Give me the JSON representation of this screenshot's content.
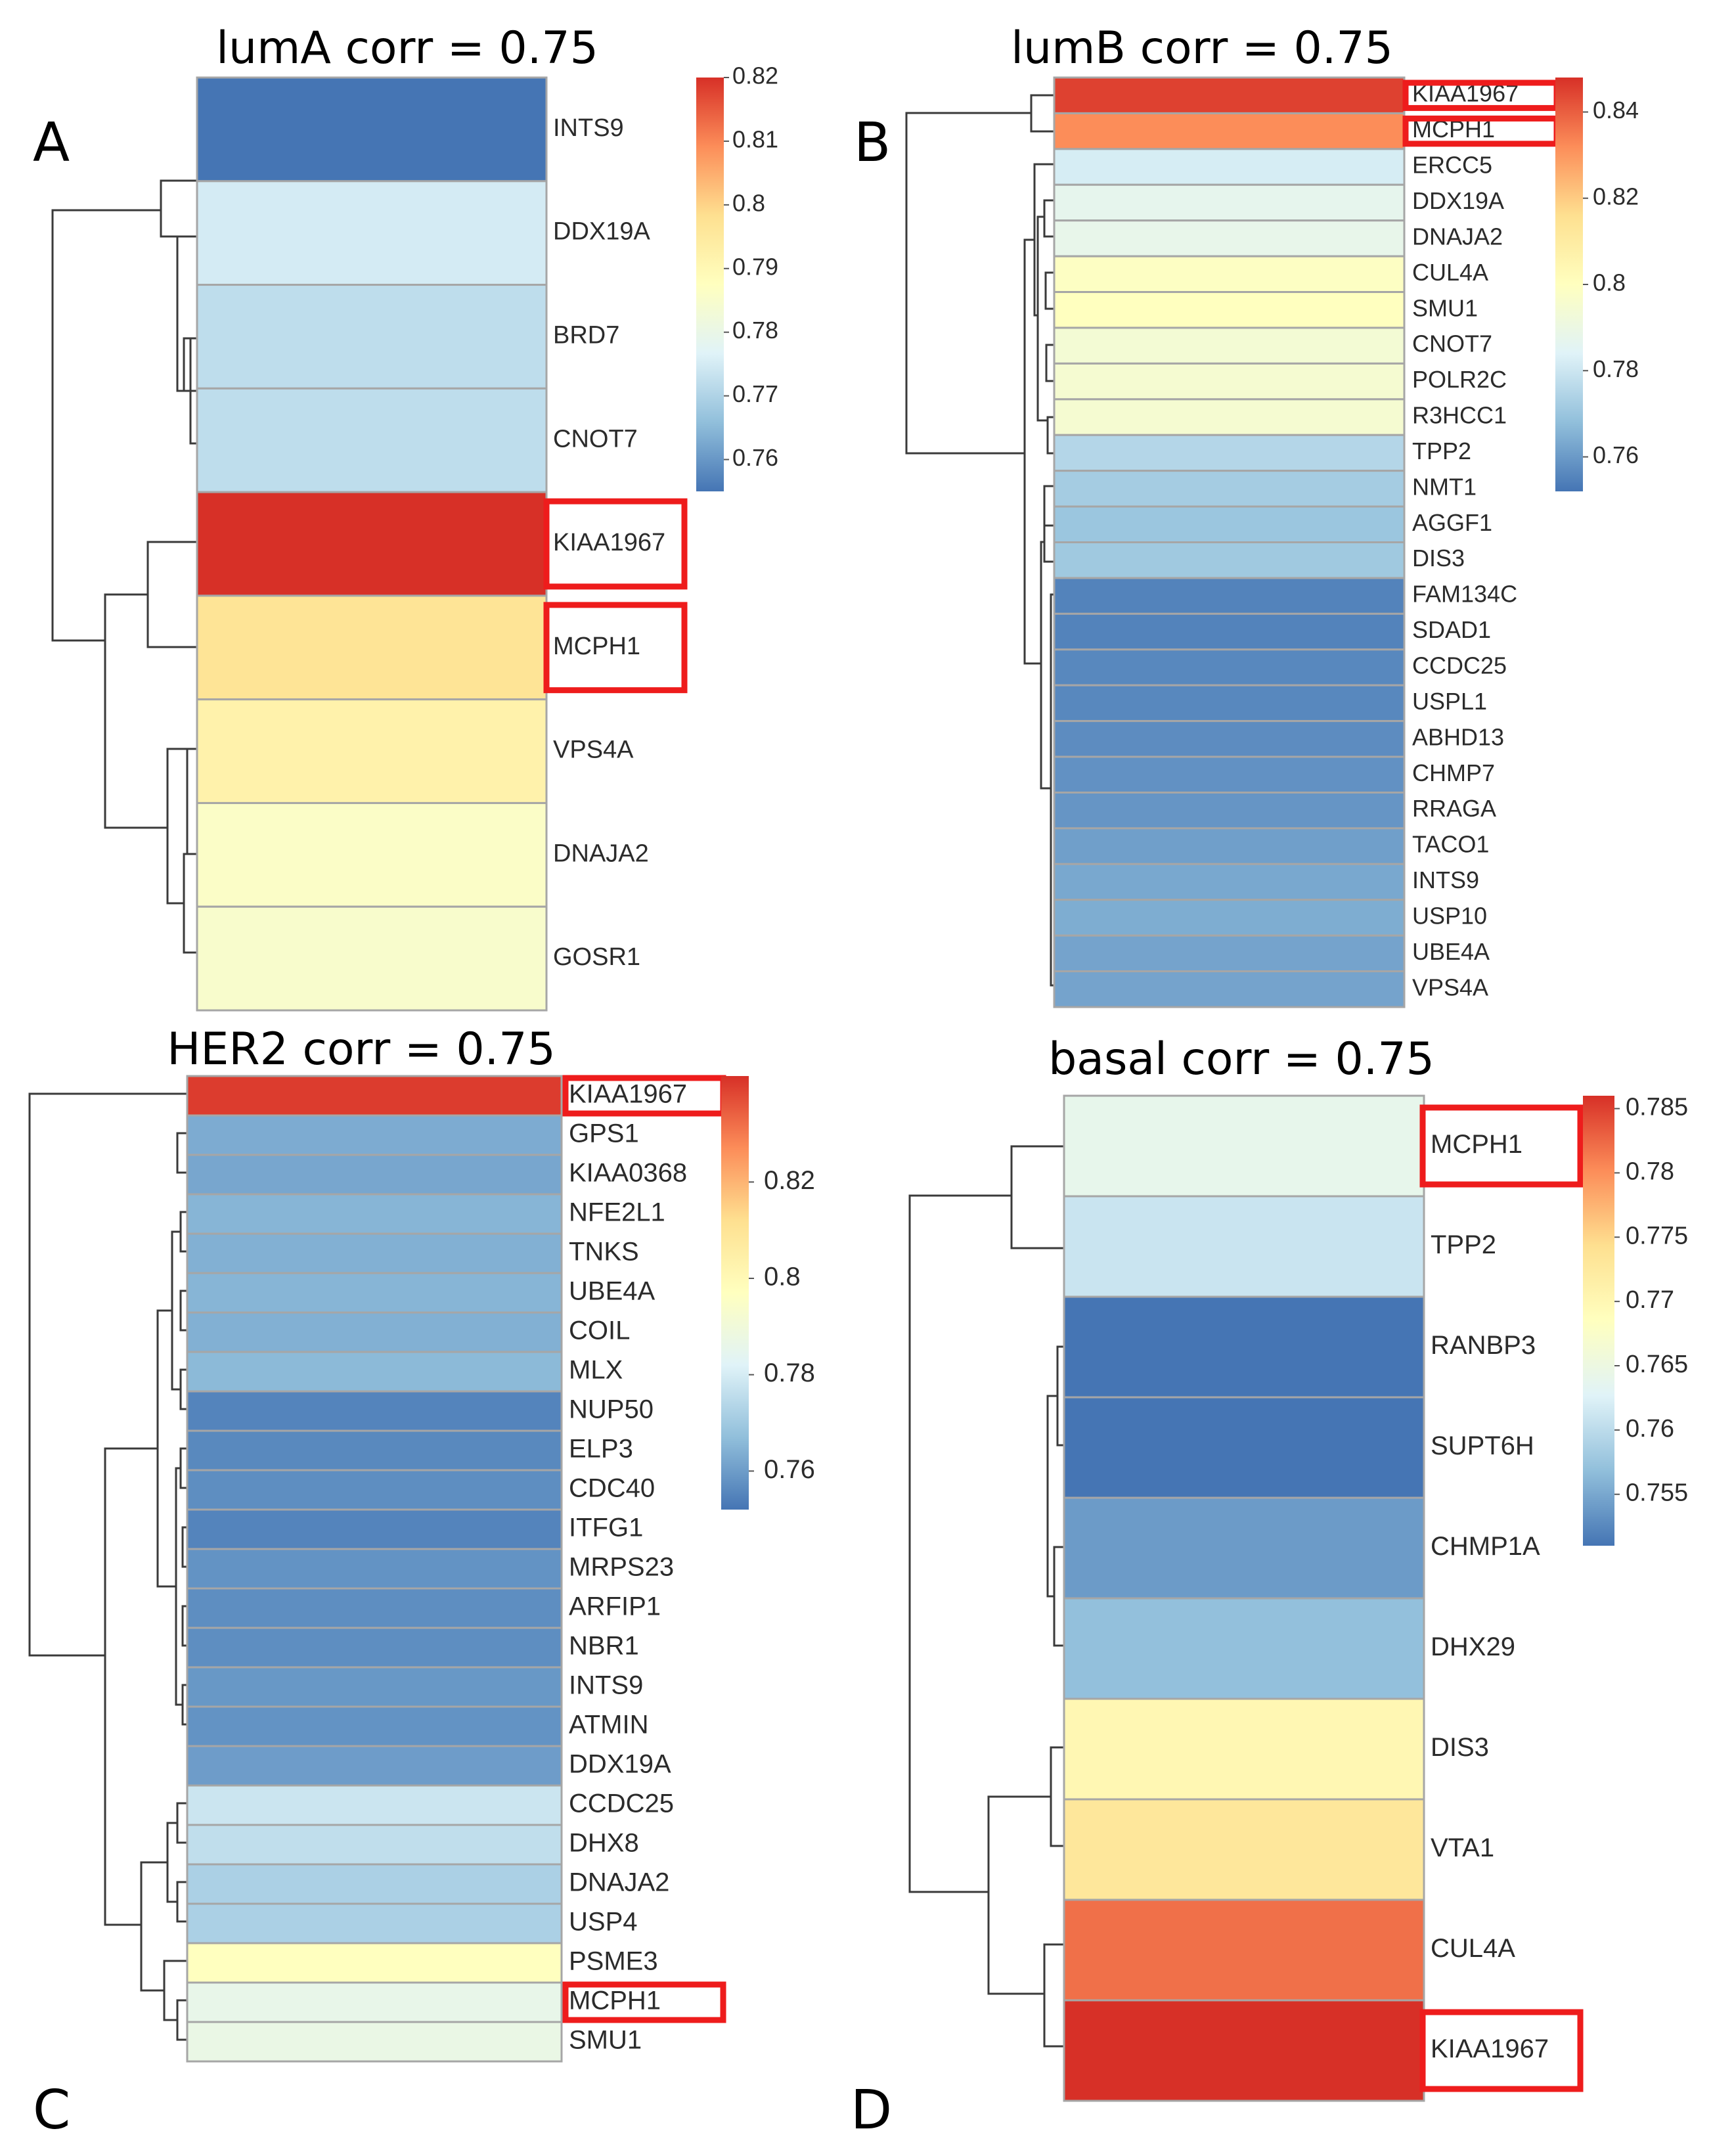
{
  "colors": {
    "scale": [
      "#4575b4",
      "#91bfdb",
      "#e0f3f8",
      "#ffffbf",
      "#fee090",
      "#fc8d59",
      "#d73027"
    ],
    "highlight": "#ee1c1c",
    "cell_border": "#a6a6a6"
  },
  "chart_data": [
    {
      "type": "heatmap",
      "panel": "A",
      "title": "lumA corr = 0.75",
      "rows": [
        "INTS9",
        "DDX19A",
        "BRD7",
        "CNOT7",
        "KIAA1967",
        "MCPH1",
        "VPS4A",
        "DNAJA2",
        "GOSR1"
      ],
      "values": [
        0.755,
        0.775,
        0.772,
        0.772,
        0.82,
        0.797,
        0.792,
        0.786,
        0.785
      ],
      "colorbar": {
        "range": [
          0.755,
          0.82
        ],
        "ticks": [
          0.82,
          0.81,
          0.8,
          0.79,
          0.78,
          0.77,
          0.76
        ]
      },
      "highlighted": [
        "KIAA1967",
        "MCPH1"
      ]
    },
    {
      "type": "heatmap",
      "panel": "B",
      "title": "lumB corr = 0.75",
      "rows": [
        "KIAA1967",
        "MCPH1",
        "ERCC5",
        "DDX19A",
        "DNAJA2",
        "CUL4A",
        "SMU1",
        "CNOT7",
        "POLR2C",
        "R3HCC1",
        "TPP2",
        "NMT1",
        "AGGF1",
        "DIS3",
        "FAM134C",
        "SDAD1",
        "CCDC25",
        "USPL1",
        "ABHD13",
        "CHMP7",
        "RRAGA",
        "TACO1",
        "INTS9",
        "USP10",
        "UBE4A",
        "VPS4A"
      ],
      "values": [
        0.845,
        0.832,
        0.782,
        0.787,
        0.788,
        0.799,
        0.8,
        0.794,
        0.795,
        0.795,
        0.775,
        0.772,
        0.77,
        0.771,
        0.755,
        0.755,
        0.756,
        0.756,
        0.757,
        0.758,
        0.759,
        0.761,
        0.763,
        0.764,
        0.762,
        0.762
      ],
      "colorbar": {
        "range": [
          0.752,
          0.848
        ],
        "ticks": [
          0.84,
          0.82,
          0.8,
          0.78,
          0.76
        ]
      },
      "highlighted": [
        "KIAA1967",
        "MCPH1"
      ]
    },
    {
      "type": "heatmap",
      "panel": "C",
      "title": "HER2 corr = 0.75",
      "rows": [
        "KIAA1967",
        "GPS1",
        "KIAA0368",
        "NFE2L1",
        "TNKS",
        "UBE4A",
        "COIL",
        "MLX",
        "NUP50",
        "ELP3",
        "CDC40",
        "ITFG1",
        "MRPS23",
        "ARFIP1",
        "NBR1",
        "INTS9",
        "ATMIN",
        "DDX19A",
        "CCDC25",
        "DHX8",
        "DNAJA2",
        "USP4",
        "PSME3",
        "MCPH1",
        "SMU1"
      ],
      "values": [
        0.84,
        0.763,
        0.762,
        0.765,
        0.764,
        0.765,
        0.764,
        0.766,
        0.755,
        0.756,
        0.757,
        0.755,
        0.758,
        0.757,
        0.757,
        0.759,
        0.758,
        0.76,
        0.778,
        0.776,
        0.772,
        0.772,
        0.797,
        0.786,
        0.787
      ],
      "colorbar": {
        "range": [
          0.752,
          0.842
        ],
        "ticks": [
          0.82,
          0.8,
          0.78,
          0.76
        ]
      },
      "highlighted": [
        "KIAA1967",
        "MCPH1"
      ]
    },
    {
      "type": "heatmap",
      "panel": "D",
      "title": "basal corr = 0.75",
      "rows": [
        "MCPH1",
        "TPP2",
        "RANBP3",
        "SUPT6H",
        "CHMP1A",
        "DHX29",
        "DIS3",
        "VTA1",
        "CUL4A",
        "KIAA1967"
      ],
      "values": [
        0.764,
        0.761,
        0.751,
        0.751,
        0.754,
        0.757,
        0.77,
        0.773,
        0.782,
        0.786
      ],
      "colorbar": {
        "range": [
          0.751,
          0.786
        ],
        "ticks": [
          0.785,
          0.78,
          0.775,
          0.77,
          0.765,
          0.76,
          0.755
        ]
      },
      "highlighted": [
        "MCPH1",
        "KIAA1967"
      ]
    }
  ]
}
